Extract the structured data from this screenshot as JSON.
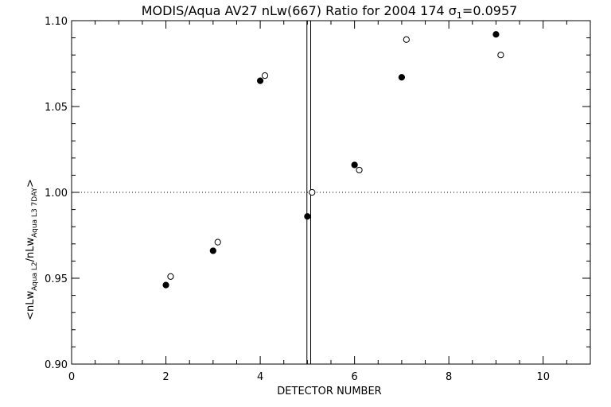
{
  "chart_data": {
    "type": "scatter",
    "title": {
      "prefix": "MODIS/Aqua AV27 nLw(667) Ratio for 2004 174 ",
      "sigma_symbol": "σ",
      "sigma_sub": "1",
      "suffix": "=0.0957"
    },
    "xlabel": "DETECTOR NUMBER",
    "ylabel": {
      "open": "<nLw",
      "sub1": "Aqua L2",
      "mid": "/nLw",
      "sub2": "Aqua L3 7DAY",
      "close": ">"
    },
    "xlim": [
      0,
      11
    ],
    "ylim": [
      0.9,
      1.1
    ],
    "x_ticks": [
      0,
      2,
      4,
      6,
      8,
      10
    ],
    "x_tick_labels": [
      "0",
      "2",
      "4",
      "6",
      "8",
      "10"
    ],
    "y_ticks": [
      0.9,
      0.95,
      1.0,
      1.05,
      1.1
    ],
    "y_tick_labels": [
      "0.90",
      "0.95",
      "1.00",
      "1.05",
      "1.10"
    ],
    "reference_line_y": 1.0,
    "vertical_lines_x": [
      4.99,
      5.07
    ],
    "series": [
      {
        "marker": "filled-circle",
        "points": [
          {
            "x": 2,
            "y": 0.946
          },
          {
            "x": 3,
            "y": 0.966
          },
          {
            "x": 4,
            "y": 1.065
          },
          {
            "x": 5,
            "y": 0.986
          },
          {
            "x": 6,
            "y": 1.016
          },
          {
            "x": 7,
            "y": 1.067
          },
          {
            "x": 9,
            "y": 1.092
          }
        ]
      },
      {
        "marker": "open-circle",
        "points": [
          {
            "x": 2.1,
            "y": 0.951
          },
          {
            "x": 3.1,
            "y": 0.971
          },
          {
            "x": 4.1,
            "y": 1.068
          },
          {
            "x": 5.1,
            "y": 1.0
          },
          {
            "x": 6.1,
            "y": 1.013
          },
          {
            "x": 7.1,
            "y": 1.089
          },
          {
            "x": 9.1,
            "y": 1.08
          }
        ]
      }
    ]
  }
}
